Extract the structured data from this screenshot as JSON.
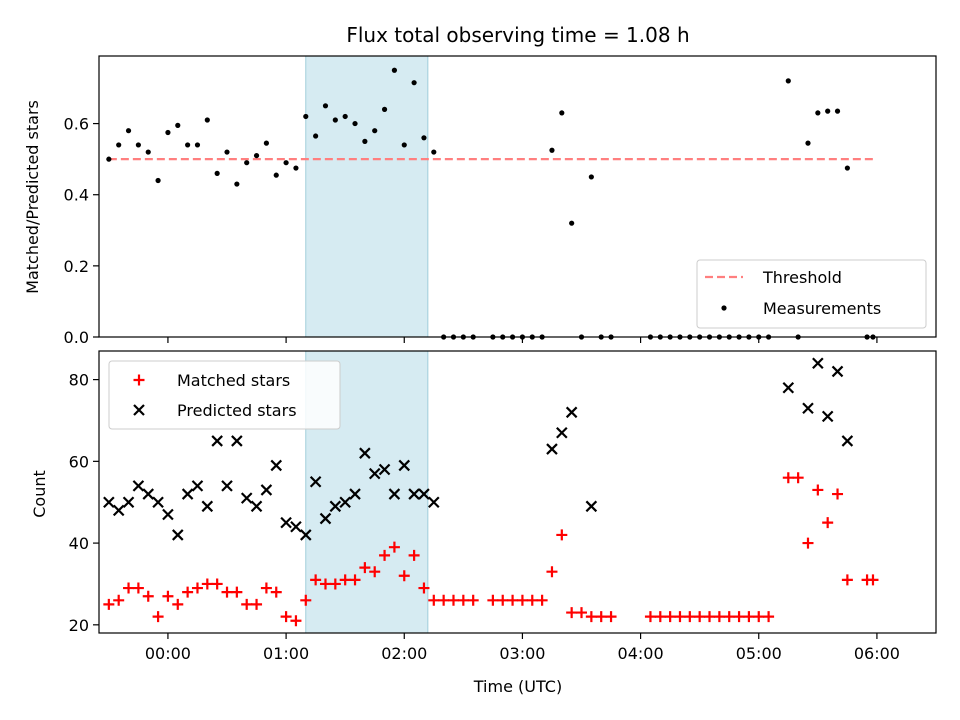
{
  "chart_data": [
    {
      "type": "scatter",
      "title": "Flux total observing time = 1.08 h",
      "xlabel": "",
      "ylabel": "Matched/Predicted stars",
      "xlim": [
        "23:25",
        "06:30"
      ],
      "ylim": [
        0,
        0.79
      ],
      "yticks": [
        0.0,
        0.2,
        0.4,
        0.6
      ],
      "ytick_labels": [
        "0.0",
        "0.2",
        "0.4",
        "0.6"
      ],
      "xticks": [
        "00:00",
        "01:00",
        "02:00",
        "03:00",
        "04:00",
        "05:00",
        "06:00"
      ],
      "show_xtick_labels": false,
      "shaded_interval": [
        "01:10",
        "02:12"
      ],
      "shade_color": "#add8e6",
      "grid": false,
      "legend_location": "lower right",
      "series": [
        {
          "name": "Threshold",
          "kind": "dashed-line",
          "color": "#ff7f7f",
          "x": [
            "23:30",
            "05:58"
          ],
          "y": [
            0.5,
            0.5
          ]
        },
        {
          "name": "Measurements",
          "kind": "points",
          "color": "#000000",
          "points": [
            [
              "23:30",
              0.5
            ],
            [
              "23:35",
              0.54
            ],
            [
              "23:40",
              0.58
            ],
            [
              "23:45",
              0.54
            ],
            [
              "23:50",
              0.52
            ],
            [
              "23:55",
              0.44
            ],
            [
              "00:00",
              0.575
            ],
            [
              "00:05",
              0.595
            ],
            [
              "00:10",
              0.54
            ],
            [
              "00:15",
              0.54
            ],
            [
              "00:20",
              0.61
            ],
            [
              "00:25",
              0.46
            ],
            [
              "00:30",
              0.52
            ],
            [
              "00:35",
              0.43
            ],
            [
              "00:40",
              0.49
            ],
            [
              "00:45",
              0.51
            ],
            [
              "00:50",
              0.545
            ],
            [
              "00:55",
              0.455
            ],
            [
              "01:00",
              0.49
            ],
            [
              "01:05",
              0.475
            ],
            [
              "01:10",
              0.62
            ],
            [
              "01:15",
              0.565
            ],
            [
              "01:20",
              0.65
            ],
            [
              "01:25",
              0.61
            ],
            [
              "01:30",
              0.62
            ],
            [
              "01:35",
              0.6
            ],
            [
              "01:40",
              0.55
            ],
            [
              "01:45",
              0.58
            ],
            [
              "01:50",
              0.64
            ],
            [
              "01:55",
              0.75
            ],
            [
              "02:00",
              0.54
            ],
            [
              "02:05",
              0.715
            ],
            [
              "02:10",
              0.56
            ],
            [
              "02:15",
              0.52
            ],
            [
              "02:20",
              0.0
            ],
            [
              "02:25",
              0.0
            ],
            [
              "02:30",
              0.0
            ],
            [
              "02:35",
              0.0
            ],
            [
              "02:45",
              0.0
            ],
            [
              "02:50",
              0.0
            ],
            [
              "02:55",
              0.0
            ],
            [
              "03:00",
              0.0
            ],
            [
              "03:05",
              0.0
            ],
            [
              "03:10",
              0.0
            ],
            [
              "03:15",
              0.525
            ],
            [
              "03:20",
              0.63
            ],
            [
              "03:25",
              0.32
            ],
            [
              "03:30",
              0.0
            ],
            [
              "03:35",
              0.45
            ],
            [
              "03:40",
              0.0
            ],
            [
              "03:45",
              0.0
            ],
            [
              "04:05",
              0.0
            ],
            [
              "04:10",
              0.0
            ],
            [
              "04:15",
              0.0
            ],
            [
              "04:20",
              0.0
            ],
            [
              "04:25",
              0.0
            ],
            [
              "04:30",
              0.0
            ],
            [
              "04:35",
              0.0
            ],
            [
              "04:40",
              0.0
            ],
            [
              "04:45",
              0.0
            ],
            [
              "04:50",
              0.0
            ],
            [
              "04:55",
              0.0
            ],
            [
              "05:00",
              0.0
            ],
            [
              "05:05",
              0.0
            ],
            [
              "05:15",
              0.72
            ],
            [
              "05:20",
              0.0
            ],
            [
              "05:25",
              0.545
            ],
            [
              "05:30",
              0.63
            ],
            [
              "05:35",
              0.635
            ],
            [
              "05:40",
              0.635
            ],
            [
              "05:45",
              0.475
            ],
            [
              "05:55",
              0.0
            ],
            [
              "05:58",
              0.0
            ]
          ]
        }
      ]
    },
    {
      "type": "scatter",
      "title": "",
      "xlabel": "Time (UTC)",
      "ylabel": "Count",
      "xlim": [
        "23:25",
        "06:30"
      ],
      "ylim": [
        18,
        87
      ],
      "yticks": [
        20,
        40,
        60,
        80
      ],
      "ytick_labels": [
        "20",
        "40",
        "60",
        "80"
      ],
      "xticks": [
        "00:00",
        "01:00",
        "02:00",
        "03:00",
        "04:00",
        "05:00",
        "06:00"
      ],
      "xtick_labels": [
        "00:00",
        "01:00",
        "02:00",
        "03:00",
        "04:00",
        "05:00",
        "06:00"
      ],
      "shaded_interval": [
        "01:10",
        "02:12"
      ],
      "shade_color": "#add8e6",
      "grid": false,
      "legend_location": "upper left",
      "series": [
        {
          "name": "Matched stars",
          "marker": "plus",
          "color": "#ff0000",
          "points": [
            [
              "23:30",
              25
            ],
            [
              "23:35",
              26
            ],
            [
              "23:40",
              29
            ],
            [
              "23:45",
              29
            ],
            [
              "23:50",
              27
            ],
            [
              "23:55",
              22
            ],
            [
              "00:00",
              27
            ],
            [
              "00:05",
              25
            ],
            [
              "00:10",
              28
            ],
            [
              "00:15",
              29
            ],
            [
              "00:20",
              30
            ],
            [
              "00:25",
              30
            ],
            [
              "00:30",
              28
            ],
            [
              "00:35",
              28
            ],
            [
              "00:40",
              25
            ],
            [
              "00:45",
              25
            ],
            [
              "00:50",
              29
            ],
            [
              "00:55",
              28
            ],
            [
              "01:00",
              22
            ],
            [
              "01:05",
              21
            ],
            [
              "01:10",
              26
            ],
            [
              "01:15",
              31
            ],
            [
              "01:20",
              30
            ],
            [
              "01:25",
              30
            ],
            [
              "01:30",
              31
            ],
            [
              "01:35",
              31
            ],
            [
              "01:40",
              34
            ],
            [
              "01:45",
              33
            ],
            [
              "01:50",
              37
            ],
            [
              "01:55",
              39
            ],
            [
              "02:00",
              32
            ],
            [
              "02:05",
              37
            ],
            [
              "02:10",
              29
            ],
            [
              "02:15",
              26
            ],
            [
              "02:20",
              26
            ],
            [
              "02:25",
              26
            ],
            [
              "02:30",
              26
            ],
            [
              "02:35",
              26
            ],
            [
              "02:45",
              26
            ],
            [
              "02:50",
              26
            ],
            [
              "02:55",
              26
            ],
            [
              "03:00",
              26
            ],
            [
              "03:05",
              26
            ],
            [
              "03:10",
              26
            ],
            [
              "03:15",
              33
            ],
            [
              "03:20",
              42
            ],
            [
              "03:25",
              23
            ],
            [
              "03:30",
              23
            ],
            [
              "03:35",
              22
            ],
            [
              "03:40",
              22
            ],
            [
              "03:45",
              22
            ],
            [
              "04:05",
              22
            ],
            [
              "04:10",
              22
            ],
            [
              "04:15",
              22
            ],
            [
              "04:20",
              22
            ],
            [
              "04:25",
              22
            ],
            [
              "04:30",
              22
            ],
            [
              "04:35",
              22
            ],
            [
              "04:40",
              22
            ],
            [
              "04:45",
              22
            ],
            [
              "04:50",
              22
            ],
            [
              "04:55",
              22
            ],
            [
              "05:00",
              22
            ],
            [
              "05:05",
              22
            ],
            [
              "05:15",
              56
            ],
            [
              "05:20",
              56
            ],
            [
              "05:25",
              40
            ],
            [
              "05:30",
              53
            ],
            [
              "05:35",
              45
            ],
            [
              "05:40",
              52
            ],
            [
              "05:45",
              31
            ],
            [
              "05:55",
              31
            ],
            [
              "05:58",
              31
            ]
          ]
        },
        {
          "name": "Predicted stars",
          "marker": "x",
          "color": "#000000",
          "points": [
            [
              "23:30",
              50
            ],
            [
              "23:35",
              48
            ],
            [
              "23:40",
              50
            ],
            [
              "23:45",
              54
            ],
            [
              "23:50",
              52
            ],
            [
              "23:55",
              50
            ],
            [
              "00:00",
              47
            ],
            [
              "00:05",
              42
            ],
            [
              "00:10",
              52
            ],
            [
              "00:15",
              54
            ],
            [
              "00:20",
              49
            ],
            [
              "00:25",
              65
            ],
            [
              "00:30",
              54
            ],
            [
              "00:35",
              65
            ],
            [
              "00:40",
              51
            ],
            [
              "00:45",
              49
            ],
            [
              "00:50",
              53
            ],
            [
              "00:55",
              59
            ],
            [
              "01:00",
              45
            ],
            [
              "01:05",
              44
            ],
            [
              "01:10",
              42
            ],
            [
              "01:15",
              55
            ],
            [
              "01:20",
              46
            ],
            [
              "01:25",
              49
            ],
            [
              "01:30",
              50
            ],
            [
              "01:35",
              52
            ],
            [
              "01:40",
              62
            ],
            [
              "01:45",
              57
            ],
            [
              "01:50",
              58
            ],
            [
              "01:55",
              52
            ],
            [
              "02:00",
              59
            ],
            [
              "02:05",
              52
            ],
            [
              "02:10",
              52
            ],
            [
              "02:15",
              50
            ],
            [
              "03:15",
              63
            ],
            [
              "03:20",
              67
            ],
            [
              "03:25",
              72
            ],
            [
              "03:35",
              49
            ],
            [
              "05:15",
              78
            ],
            [
              "05:25",
              73
            ],
            [
              "05:30",
              84
            ],
            [
              "05:35",
              71
            ],
            [
              "05:40",
              82
            ],
            [
              "05:45",
              65
            ]
          ]
        }
      ]
    }
  ]
}
